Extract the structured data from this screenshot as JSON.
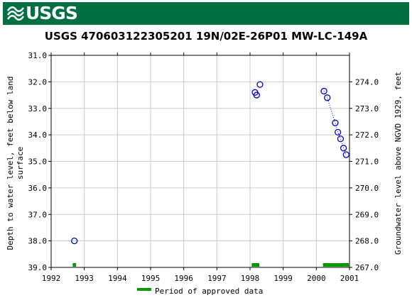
{
  "banner": {
    "logo_text": "USGS",
    "color": "#006f41"
  },
  "chart_data": {
    "type": "scatter",
    "title": "USGS 470603122305201 19N/02E-26P01 MW-LC-149A",
    "ylabel_left": "Depth to water level, feet below land surface",
    "ylabel_right": "Groundwater level above NGVD 1929, feet",
    "xlim": [
      1992,
      2001
    ],
    "ylim_left": [
      31.0,
      39.0
    ],
    "left_axis_inverted": true,
    "ylim_right": [
      275.0,
      267.0
    ],
    "x_ticks": [
      "1992",
      "1993",
      "1994",
      "1995",
      "1996",
      "1997",
      "1998",
      "1999",
      "2000",
      "2001"
    ],
    "y_ticks_left": [
      "31.0",
      "32.0",
      "33.0",
      "34.0",
      "35.0",
      "36.0",
      "37.0",
      "38.0",
      "39.0"
    ],
    "y_ticks_right": [
      "274.0",
      "273.0",
      "272.0",
      "271.0",
      "270.0",
      "269.0",
      "268.0",
      "267.0"
    ],
    "grid": true,
    "marker_color": "#0000cc",
    "series": [
      {
        "x": [
          1992.7,
          1998.15,
          1998.2,
          1998.3,
          2000.23,
          2000.33,
          2000.57,
          2000.65,
          2000.73,
          2000.82,
          2000.9
        ],
        "y": [
          38.0,
          32.4,
          32.5,
          32.1,
          32.35,
          32.6,
          33.55,
          33.9,
          34.15,
          34.5,
          34.75
        ]
      }
    ],
    "connected_segment": {
      "from_index": 4,
      "to_index": 10,
      "style": "dotted"
    },
    "approved_periods": [
      [
        1992.65,
        1992.75
      ],
      [
        1998.05,
        1998.28
      ],
      [
        2000.2,
        2000.98
      ]
    ],
    "approved_color": "#009900",
    "legend": {
      "label": "Period of approved data",
      "position": "bottom"
    }
  }
}
